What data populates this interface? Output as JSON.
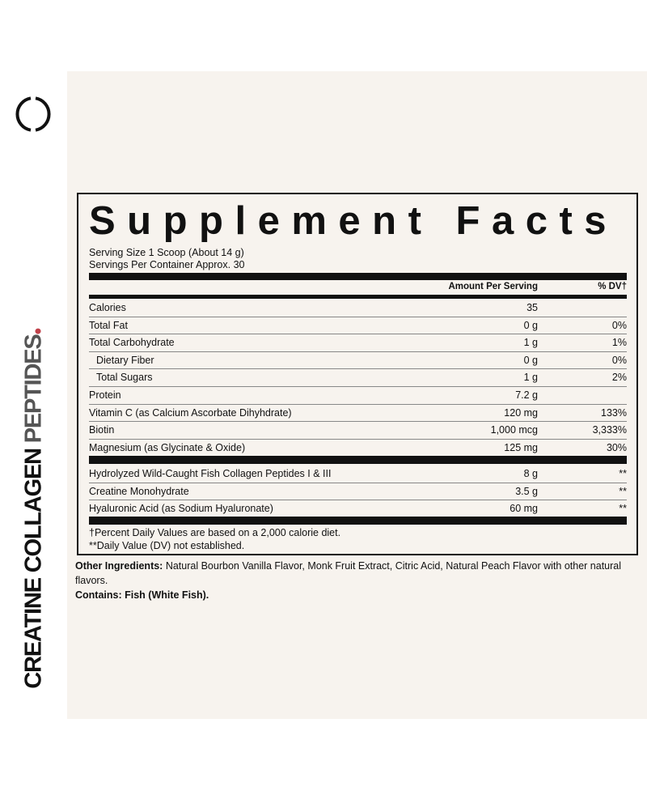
{
  "brand": {
    "logo": "open-circle-logo",
    "vertical_label": {
      "part1": "CREATINE COLLAGEN ",
      "part2": "PEPTIDES"
    },
    "accent_color": "#c0414a"
  },
  "facts": {
    "title": "Supplement Facts",
    "serving_size": "Serving Size 1 Scoop (About 14 g)",
    "servings_per_container": "Servings Per Container Approx. 30",
    "header": {
      "amount": "Amount Per Serving",
      "dv": "% DV†"
    },
    "nutrients": [
      {
        "name": "Calories",
        "amount": "35",
        "dv": ""
      },
      {
        "name": "Total Fat",
        "amount": "0 g",
        "dv": "0%"
      },
      {
        "name": "Total Carbohydrate",
        "amount": "1 g",
        "dv": "1%"
      },
      {
        "name": "Dietary Fiber",
        "amount": "0 g",
        "dv": "0%",
        "indent": true
      },
      {
        "name": "Total Sugars",
        "amount": "1 g",
        "dv": "2%",
        "indent": true
      },
      {
        "name": "Protein",
        "amount": "7.2 g",
        "dv": ""
      },
      {
        "name": "Vitamin C (as Calcium Ascorbate Dihyhdrate)",
        "amount": "120 mg",
        "dv": "133%"
      },
      {
        "name": "Biotin",
        "amount": "1,000 mcg",
        "dv": "3,333%"
      },
      {
        "name": "Magnesium (as Glycinate & Oxide)",
        "amount": "125 mg",
        "dv": "30%"
      }
    ],
    "other": [
      {
        "name": "Hydrolyzed Wild-Caught Fish Collagen Peptides I & III",
        "amount": "8 g",
        "dv": "**"
      },
      {
        "name": "Creatine Monohydrate",
        "amount": "3.5 g",
        "dv": "**"
      },
      {
        "name": "Hyaluronic Acid (as Sodium Hyaluronate)",
        "amount": "60 mg",
        "dv": "**"
      }
    ],
    "footnote1": "†Percent Daily Values are based on a 2,000 calorie diet.",
    "footnote2": "**Daily Value (DV) not established."
  },
  "ingredients": {
    "other_label": "Other Ingredients:",
    "other_text": " Natural Bourbon Vanilla Flavor, Monk Fruit Extract, Citric Acid, Natural Peach Flavor with other natural flavors.",
    "contains": "Contains: Fish (White Fish)."
  }
}
